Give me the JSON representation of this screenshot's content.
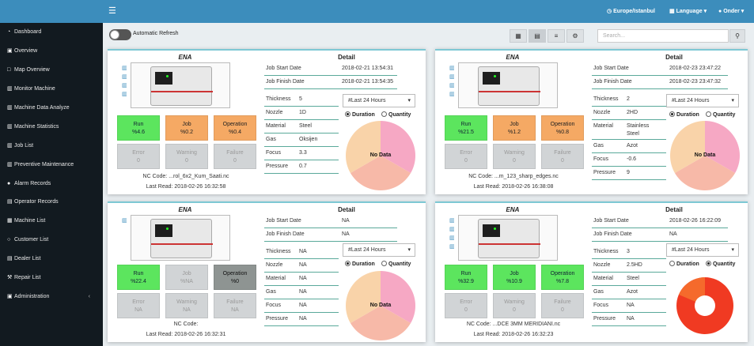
{
  "header": {
    "menu_icon": "hamburger-icon",
    "timezone": "Europe/Istanbul",
    "language": "Language",
    "user": "Onder"
  },
  "sidebar": {
    "items": [
      {
        "label": "Dashboard",
        "icon": "dashboard-icon"
      },
      {
        "label": "Overview",
        "icon": "overview-icon"
      },
      {
        "label": "Map Overview",
        "icon": "map-icon"
      },
      {
        "label": "Monitor Machine",
        "icon": "chart-icon"
      },
      {
        "label": "Machine Data Analyze",
        "icon": "chart-icon"
      },
      {
        "label": "Machine Statistics",
        "icon": "chart-icon"
      },
      {
        "label": "Job List",
        "icon": "chart-icon"
      },
      {
        "label": "Preventive Maintenance",
        "icon": "chart-icon"
      },
      {
        "label": "Alarm Records",
        "icon": "alarm-icon"
      },
      {
        "label": "Operator Records",
        "icon": "user-icon"
      },
      {
        "label": "Machine List",
        "icon": "machine-icon"
      },
      {
        "label": "Customer List",
        "icon": "globe-icon"
      },
      {
        "label": "Dealer List",
        "icon": "list-icon"
      },
      {
        "label": "Repair List",
        "icon": "wrench-icon"
      },
      {
        "label": "Administration",
        "icon": "admin-icon"
      }
    ]
  },
  "toolbar": {
    "auto_refresh_label": "Automatic Refresh",
    "search_placeholder": "Search...",
    "view_buttons": [
      "grid-view-icon",
      "tile-view-icon",
      "list-view-icon",
      "settings-view-icon"
    ]
  },
  "detail_labels": {
    "job_start": "Job Start Date",
    "job_finish": "Job Finish Date",
    "thickness": "Thickness",
    "nozzle": "Nozzle",
    "material": "Material",
    "gas": "Gas",
    "focus": "Focus",
    "pressure": "Pressure",
    "detail_title": "Detail",
    "period_option": "#Last 24 Hours",
    "duration": "Duration",
    "quantity": "Quantity",
    "run": "Run",
    "job": "Job",
    "operation": "Operation",
    "error": "Error",
    "warning": "Warning",
    "failure": "Failure"
  },
  "cards": [
    {
      "machine_name": "ENA",
      "run": "%4.6",
      "job": "%0.2",
      "operation": "%0.4",
      "error": "0",
      "warning": "0",
      "failure": "0",
      "nc_code": "NC Code: ...rol_6x2_Kum_Saati.nc",
      "last_read": "Last Read: 2018-02-26 16:32:58",
      "job_start": "2018-02-21 13:54:31",
      "job_finish": "2018-02-21 13:54:35",
      "thickness": "5",
      "nozzle": "1D",
      "material": "Steel",
      "gas": "Oksijen",
      "focus": "3.3",
      "pressure": "0.7",
      "selected_mode": "duration",
      "pie_label": "No Data",
      "pie_colors": [
        "#f6a8c4",
        "#f7b9a8",
        "#f9d3a9"
      ]
    },
    {
      "machine_name": "ENA",
      "run": "%21.5",
      "job": "%1.2",
      "operation": "%0.8",
      "error": "0",
      "warning": "0",
      "failure": "0",
      "nc_code": "NC Code: ...m_123_sharp_edges.nc",
      "last_read": "Last Read: 2018-02-26 16:38:08",
      "job_start": "2018-02-23 23:47:22",
      "job_finish": "2018-02-23 23:47:32",
      "thickness": "2",
      "nozzle": "2HD",
      "material": "Stainless Steel",
      "gas": "Azot",
      "focus": "-0.6",
      "pressure": "9",
      "selected_mode": "duration",
      "pie_label": "No Data",
      "pie_colors": [
        "#f6a8c4",
        "#f7b9a8",
        "#f9d3a9"
      ]
    },
    {
      "machine_name": "ENA",
      "run": "%22.4",
      "job": "%NA",
      "operation": "%0",
      "error": "NA",
      "warning": "NA",
      "failure": "NA",
      "nc_code": "NC Code:",
      "last_read": "Last Read: 2018-02-26 16:32:31",
      "job_start": "NA",
      "job_finish": "NA",
      "thickness": "NA",
      "nozzle": "NA",
      "material": "NA",
      "gas": "NA",
      "focus": "NA",
      "pressure": "NA",
      "selected_mode": "duration",
      "pie_label": "No Data",
      "pie_colors": [
        "#f6a8c4",
        "#f7b9a8",
        "#f9d3a9"
      ]
    },
    {
      "machine_name": "ENA",
      "run": "%32.9",
      "job": "%10.9",
      "operation": "%7.8",
      "error": "0",
      "warning": "0",
      "failure": "0",
      "nc_code": "NC Code: ...DCE 3MM MERIDIANI.nc",
      "last_read": "Last Read: 2018-02-26 16:32:23",
      "job_start": "2018-02-26 16:22:09",
      "job_finish": "NA",
      "thickness": "3",
      "nozzle": "2.5HD",
      "material": "Steel",
      "gas": "Azot",
      "focus": "NA",
      "pressure": "NA",
      "selected_mode": "quantity",
      "pie_label": "",
      "pie_colors": [
        "#f03a22",
        "#f56a2c"
      ]
    }
  ]
}
